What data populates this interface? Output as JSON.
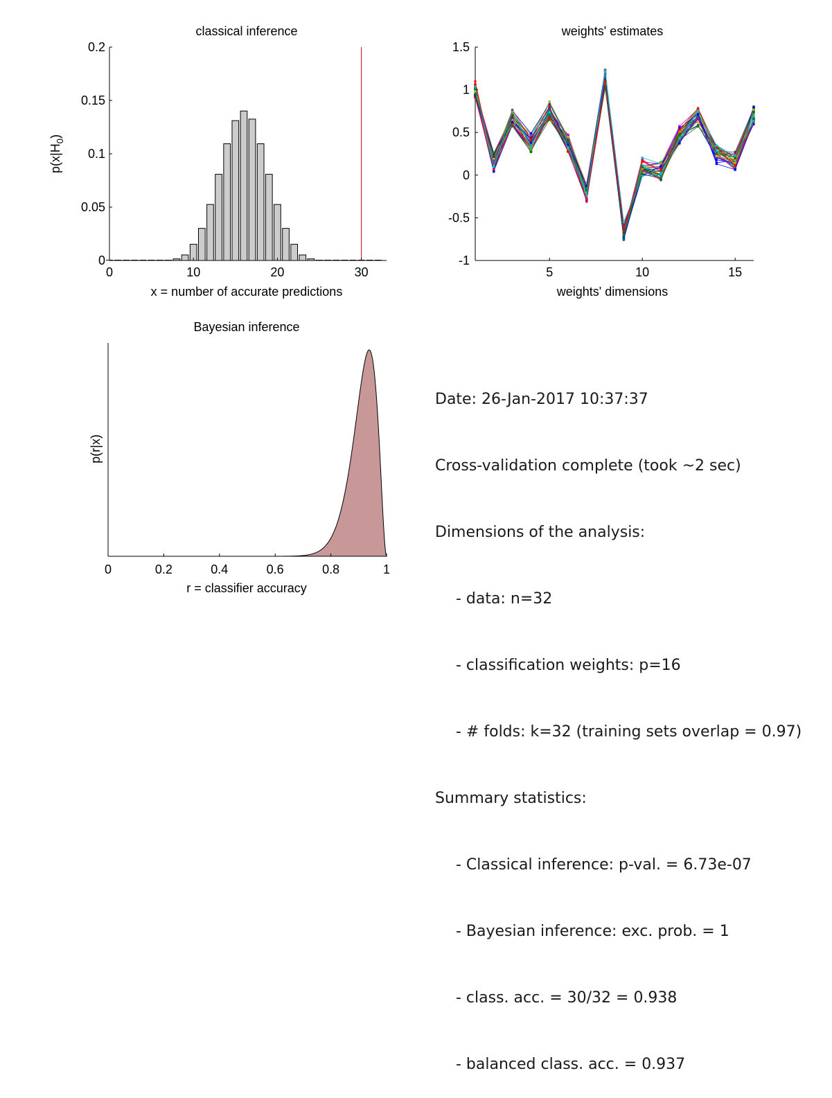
{
  "chart_data": [
    {
      "type": "bar",
      "title": "classical inference",
      "xlabel": "x = number of accurate predictions",
      "ylabel_main": "p(x|H",
      "ylabel_sub": "0",
      "ylabel_close": ")",
      "x": [
        0,
        1,
        2,
        3,
        4,
        5,
        6,
        7,
        8,
        9,
        10,
        11,
        12,
        13,
        14,
        15,
        16,
        17,
        18,
        19,
        20,
        21,
        22,
        23,
        24,
        25,
        26,
        27,
        28,
        29,
        30,
        31,
        32
      ],
      "values": [
        0,
        0,
        0,
        0,
        0,
        0,
        0,
        0.0003,
        0.0015,
        0.0052,
        0.0152,
        0.0301,
        0.0525,
        0.0808,
        0.1094,
        0.1311,
        0.1401,
        0.1325,
        0.1094,
        0.0808,
        0.0525,
        0.0301,
        0.0152,
        0.0052,
        0.0015,
        0.0003,
        0,
        0,
        0,
        0,
        0,
        0,
        0
      ],
      "xlim": [
        0,
        33
      ],
      "ylim": [
        0,
        0.2
      ],
      "xticks": [
        0,
        10,
        20,
        30
      ],
      "yticks": [
        0,
        0.05,
        0.1,
        0.15,
        0.2
      ],
      "ytick_labels": [
        "0",
        "0.05",
        "0.1",
        "0.15",
        "0.2"
      ],
      "observed_x": 30,
      "bar_color": "#cccccc",
      "line_color": "#cc0000"
    },
    {
      "type": "line",
      "title": "weights' estimates",
      "xlabel": "weights' dimensions",
      "ylabel": "",
      "x": [
        1,
        2,
        3,
        4,
        5,
        6,
        7,
        8,
        9,
        10,
        11,
        12,
        13,
        14,
        15,
        16
      ],
      "mean_values": [
        1.0,
        0.15,
        0.68,
        0.38,
        0.76,
        0.38,
        -0.2,
        1.13,
        -0.65,
        0.1,
        0.05,
        0.47,
        0.68,
        0.24,
        0.17,
        0.7
      ],
      "n_series": 32,
      "xlim": [
        1,
        16
      ],
      "ylim": [
        -1,
        1.5
      ],
      "xticks": [
        5,
        10,
        15
      ],
      "yticks": [
        -1,
        -0.5,
        0,
        0.5,
        1,
        1.5
      ],
      "ytick_labels": [
        "-1",
        "-0.5",
        "0",
        "0.5",
        "1",
        "1.5"
      ],
      "colors": [
        "#0000ff",
        "#008000",
        "#ff0000",
        "#00bfbf",
        "#bf00bf",
        "#bfbf00",
        "#404040"
      ]
    },
    {
      "type": "area",
      "title": "Bayesian inference",
      "xlabel": "r = classifier accuracy",
      "ylabel": "p(r|x)",
      "distribution": {
        "alpha": 31,
        "beta": 3
      },
      "xlim": [
        0,
        1
      ],
      "xticks": [
        0,
        0.2,
        0.4,
        0.6,
        0.8,
        1
      ],
      "xtick_labels": [
        "0",
        "0.2",
        "0.4",
        "0.6",
        "0.8",
        "1"
      ],
      "fill_color": "#c89898"
    }
  ],
  "summary": {
    "date": "Date: 26-Jan-2017 10:37:37",
    "status": "Cross-validation complete (took ~2 sec)",
    "dims_header": "Dimensions of the analysis:",
    "data_n": "- data: n=32",
    "weights_p": "- classification weights: p=16",
    "folds": "- # folds: k=32 (training sets overlap = 0.97)",
    "stats_header": "Summary statistics:",
    "classical": "- Classical inference: p-val. = 6.73e-07",
    "bayesian": "- Bayesian inference: exc. prob. = 1",
    "class_acc": "- class. acc. = 30/32 = 0.938",
    "balanced_acc": "- balanced class. acc. = 0.937"
  }
}
